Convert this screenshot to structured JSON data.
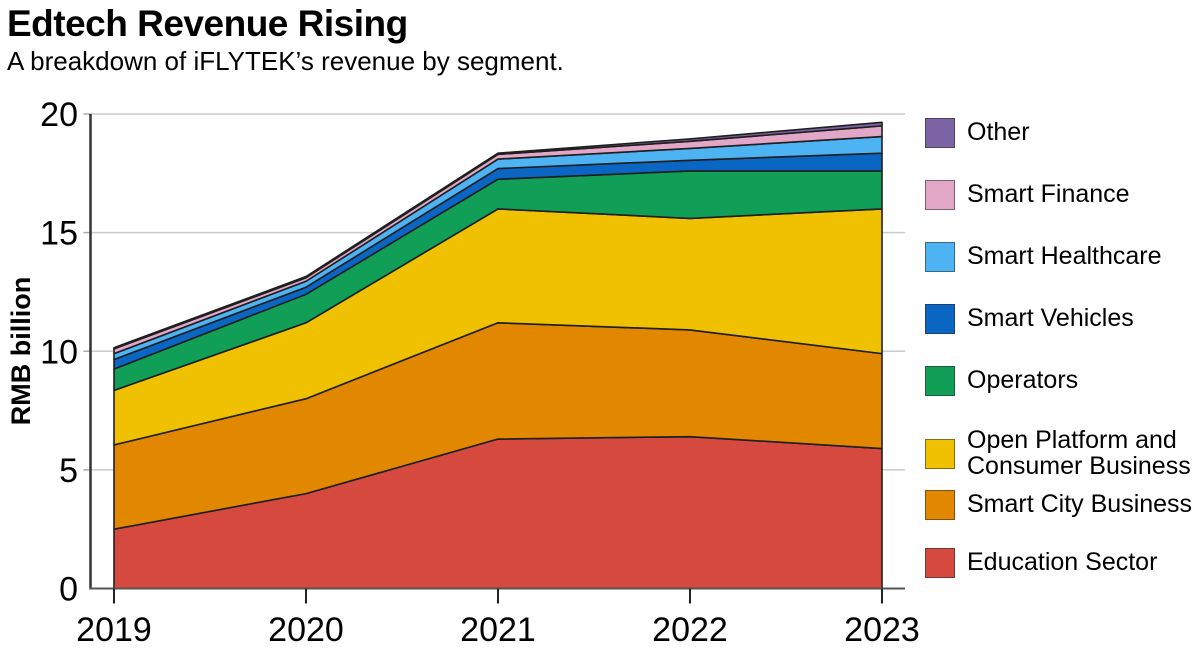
{
  "header": {
    "title": "Edtech Revenue Rising",
    "subtitle": "A breakdown of iFLYTEK’s revenue by segment."
  },
  "chart_data": {
    "type": "area",
    "stacked": true,
    "title": "Edtech Revenue Rising",
    "subtitle": "A breakdown of iFLYTEK’s revenue by segment.",
    "x": [
      2019,
      2020,
      2021,
      2022,
      2023
    ],
    "x_tick_labels": [
      "2019",
      "2020",
      "2021",
      "2022",
      "2023"
    ],
    "xlabel": "",
    "ylabel": "RMB billion",
    "ylim": [
      0,
      20
    ],
    "y_ticks": [
      0,
      5,
      10,
      15,
      20
    ],
    "y_tick_labels": [
      "0",
      "5",
      "10",
      "15",
      "20"
    ],
    "grid": true,
    "legend_position": "right",
    "series": [
      {
        "name": "Education Sector",
        "color": "#D5493F",
        "values": [
          2.5,
          4.0,
          6.3,
          6.4,
          5.9
        ],
        "legend_lines": [
          "Education Sector"
        ]
      },
      {
        "name": "Smart City Business",
        "color": "#E18700",
        "values": [
          3.55,
          4.0,
          4.9,
          4.5,
          4.0
        ],
        "legend_lines": [
          "Smart City Business"
        ]
      },
      {
        "name": "Open Platform and Consumer Business",
        "color": "#F0C100",
        "values": [
          2.3,
          3.2,
          4.8,
          4.7,
          6.1
        ],
        "legend_lines": [
          "Open Platform and",
          "Consumer Business"
        ]
      },
      {
        "name": "Operators",
        "color": "#119E56",
        "values": [
          0.9,
          1.2,
          1.25,
          2.0,
          1.6
        ],
        "legend_lines": [
          "Operators"
        ]
      },
      {
        "name": "Smart Vehicles",
        "color": "#0B66C3",
        "values": [
          0.4,
          0.3,
          0.45,
          0.45,
          0.75
        ],
        "legend_lines": [
          "Smart Vehicles"
        ]
      },
      {
        "name": "Smart Healthcare",
        "color": "#4DB3F2",
        "values": [
          0.25,
          0.25,
          0.4,
          0.5,
          0.7
        ],
        "legend_lines": [
          "Smart Healthcare"
        ]
      },
      {
        "name": "Smart Finance",
        "color": "#E2A6C7",
        "values": [
          0.2,
          0.15,
          0.2,
          0.3,
          0.45
        ],
        "legend_lines": [
          "Smart Finance"
        ]
      },
      {
        "name": "Other",
        "color": "#7B63A4",
        "values": [
          0.05,
          0.05,
          0.05,
          0.1,
          0.15
        ],
        "legend_lines": [
          "Other"
        ]
      }
    ],
    "colors": {
      "grid": "#cbcbcb",
      "axis": "#333333",
      "area_outline": "#1f1f1f"
    }
  }
}
